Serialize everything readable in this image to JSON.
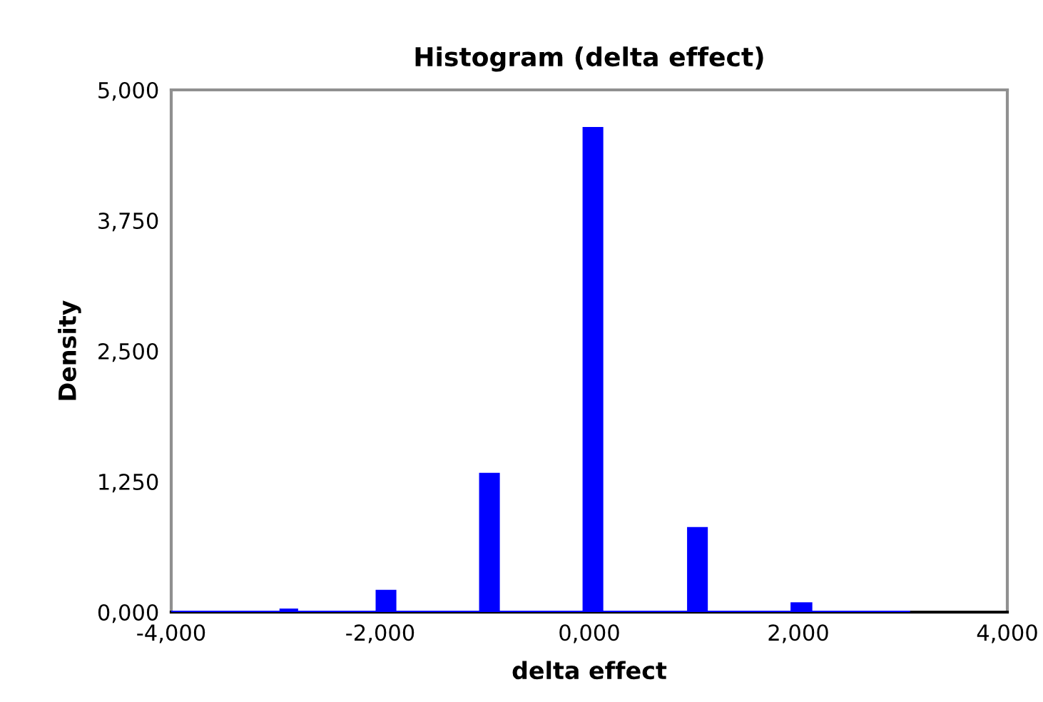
{
  "chart_data": {
    "type": "histogram",
    "title": "Histogram (delta effect)",
    "xlabel": "delta effect",
    "ylabel": "Density",
    "bins": [
      -4.0,
      -2.95,
      -2.8,
      -2.03,
      -1.86,
      -1.04,
      -0.87,
      -0.05,
      0.12,
      0.95,
      1.12,
      1.94,
      2.12,
      3.07
    ],
    "values": [
      0,
      0.02,
      0,
      0.2,
      0,
      1.32,
      0,
      4.63,
      0,
      0.8,
      0,
      0.08,
      0
    ],
    "color": "#0000ff",
    "xlim": [
      -4,
      4
    ],
    "ylim": [
      0,
      5
    ],
    "xticks": [
      {
        "value": -4,
        "label": "-4,000"
      },
      {
        "value": -2,
        "label": "-2,000"
      },
      {
        "value": 0,
        "label": "0,000"
      },
      {
        "value": 2,
        "label": "2,000"
      },
      {
        "value": 4,
        "label": "4,000"
      }
    ],
    "yticks": [
      {
        "value": 0,
        "label": "0,000"
      },
      {
        "value": 1.25,
        "label": "1,250"
      },
      {
        "value": 2.5,
        "label": "2,500"
      },
      {
        "value": 3.75,
        "label": "3,750"
      },
      {
        "value": 5,
        "label": "5,000"
      }
    ],
    "grid": false
  }
}
